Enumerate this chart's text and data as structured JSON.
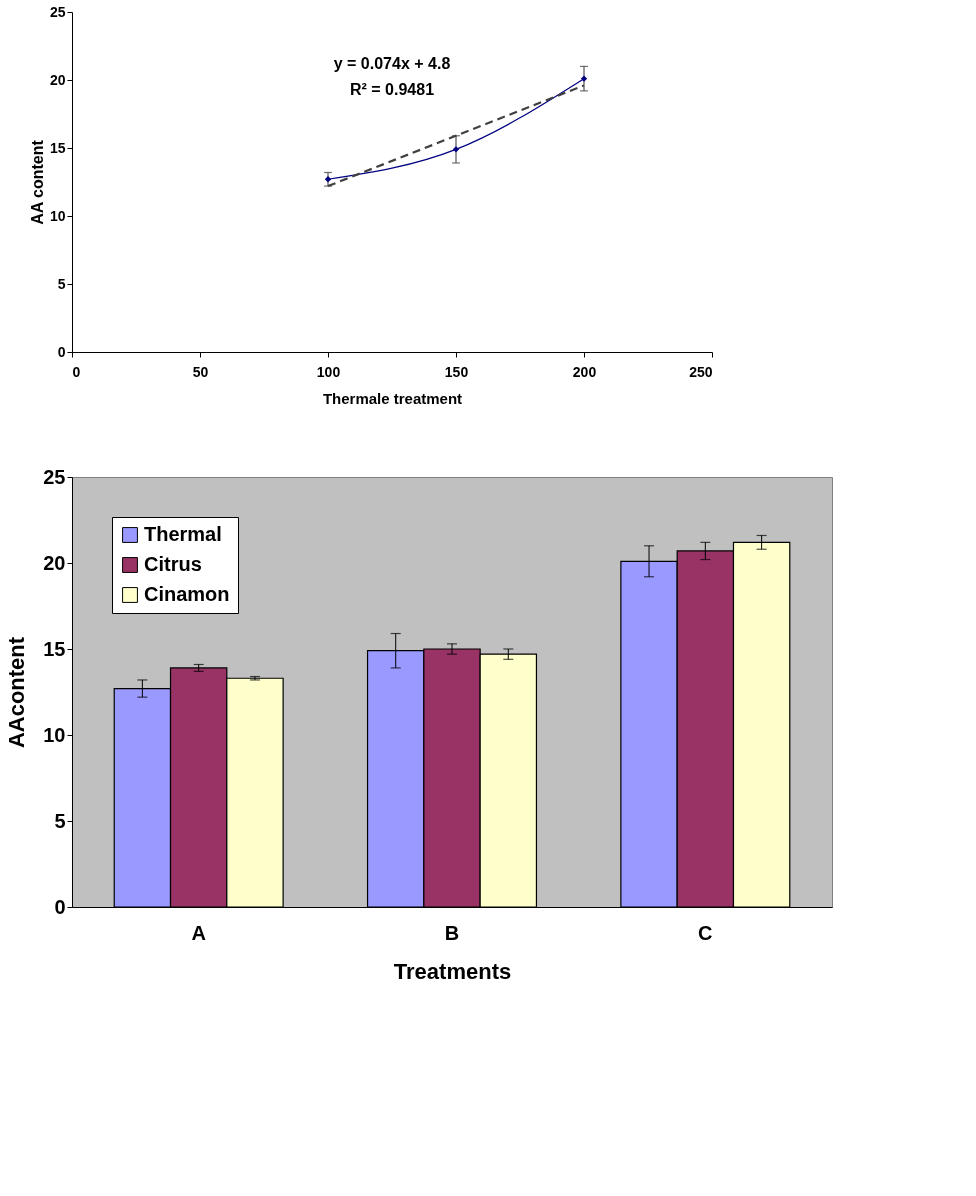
{
  "chart_data": [
    {
      "type": "line",
      "xlabel": "Thermale treatment",
      "ylabel": "AA content",
      "annotations": [
        "y = 0.074x + 4.8",
        "R² = 0.9481"
      ],
      "xlim": [
        0,
        250
      ],
      "xticks": [
        0,
        50,
        100,
        150,
        200,
        250
      ],
      "ylim": [
        0,
        25
      ],
      "yticks": [
        0,
        5,
        10,
        15,
        20,
        25
      ],
      "grid": false,
      "series": [
        {
          "type": "line",
          "color": "#000080",
          "marker": "diamond",
          "line_style": "solid",
          "x": [
            100,
            150,
            200
          ],
          "values": [
            12.7,
            14.9,
            20.1
          ],
          "errors": [
            0.5,
            1.0,
            0.9
          ]
        },
        {
          "type": "line",
          "color": "#404040",
          "marker": "none",
          "line_style": "dashed",
          "x": [
            100,
            200
          ],
          "values": [
            12.2,
            19.6
          ]
        }
      ]
    },
    {
      "type": "bar",
      "xlabel": "Treatments",
      "ylabel": "AAcontent",
      "categories": [
        "A",
        "B",
        "C"
      ],
      "ylim": [
        0,
        25
      ],
      "yticks": [
        0,
        5,
        10,
        15,
        20,
        25
      ],
      "grid": false,
      "legend": "top left",
      "series": [
        {
          "name": "Thermal",
          "color": "#9999ff",
          "values": [
            12.7,
            14.9,
            20.1
          ],
          "errors": [
            0.5,
            1.0,
            0.9
          ]
        },
        {
          "name": "Citrus",
          "color": "#993366",
          "values": [
            13.9,
            15.0,
            20.7
          ],
          "errors": [
            0.2,
            0.3,
            0.5
          ]
        },
        {
          "name": "Cinamon",
          "color": "#ffffcc",
          "values": [
            13.3,
            14.7,
            21.2
          ],
          "errors": [
            0.1,
            0.3,
            0.4
          ]
        }
      ]
    }
  ]
}
